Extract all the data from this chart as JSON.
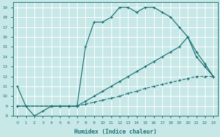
{
  "xlabel": "Humidex (Indice chaleur)",
  "bg_color": "#c8e8e8",
  "grid_color": "#ffffff",
  "line_color": "#1a7070",
  "xlim": [
    -0.5,
    23.5
  ],
  "ylim": [
    8,
    19.5
  ],
  "xticks": [
    0,
    1,
    2,
    3,
    4,
    5,
    6,
    7,
    8,
    9,
    10,
    11,
    12,
    13,
    14,
    15,
    16,
    17,
    18,
    19,
    20,
    21,
    22,
    23
  ],
  "yticks": [
    8,
    9,
    10,
    11,
    12,
    13,
    14,
    15,
    16,
    17,
    18,
    19
  ],
  "line1_x": [
    0,
    1,
    2,
    3,
    4,
    5,
    6,
    7,
    8,
    9,
    10,
    11,
    12,
    13,
    14,
    15,
    16,
    17,
    18,
    19,
    20,
    21,
    22,
    23
  ],
  "line1_y": [
    11,
    9,
    8,
    8.5,
    9,
    9,
    9,
    9,
    15,
    17.5,
    17.5,
    18,
    19,
    19,
    18.5,
    19,
    19,
    18.5,
    18,
    17,
    16,
    14,
    13,
    12
  ],
  "line2_x": [
    0,
    4,
    5,
    6,
    7,
    8,
    9,
    10,
    11,
    12,
    13,
    14,
    15,
    16,
    17,
    18,
    19,
    20,
    21,
    22,
    23
  ],
  "line2_y": [
    9,
    9,
    9,
    9,
    9,
    9.5,
    10,
    10.5,
    11,
    11.5,
    12,
    12.5,
    13,
    13.5,
    14,
    14.5,
    15,
    16,
    14.5,
    13.3,
    12
  ],
  "line3_x": [
    0,
    4,
    5,
    6,
    7,
    8,
    9,
    10,
    11,
    12,
    13,
    14,
    15,
    16,
    17,
    18,
    19,
    20,
    21,
    22,
    23
  ],
  "line3_y": [
    9,
    9,
    9,
    9,
    9,
    9.2,
    9.4,
    9.6,
    9.8,
    10.0,
    10.3,
    10.5,
    10.8,
    11.0,
    11.2,
    11.4,
    11.6,
    11.8,
    12.0,
    12.0,
    12.0
  ]
}
